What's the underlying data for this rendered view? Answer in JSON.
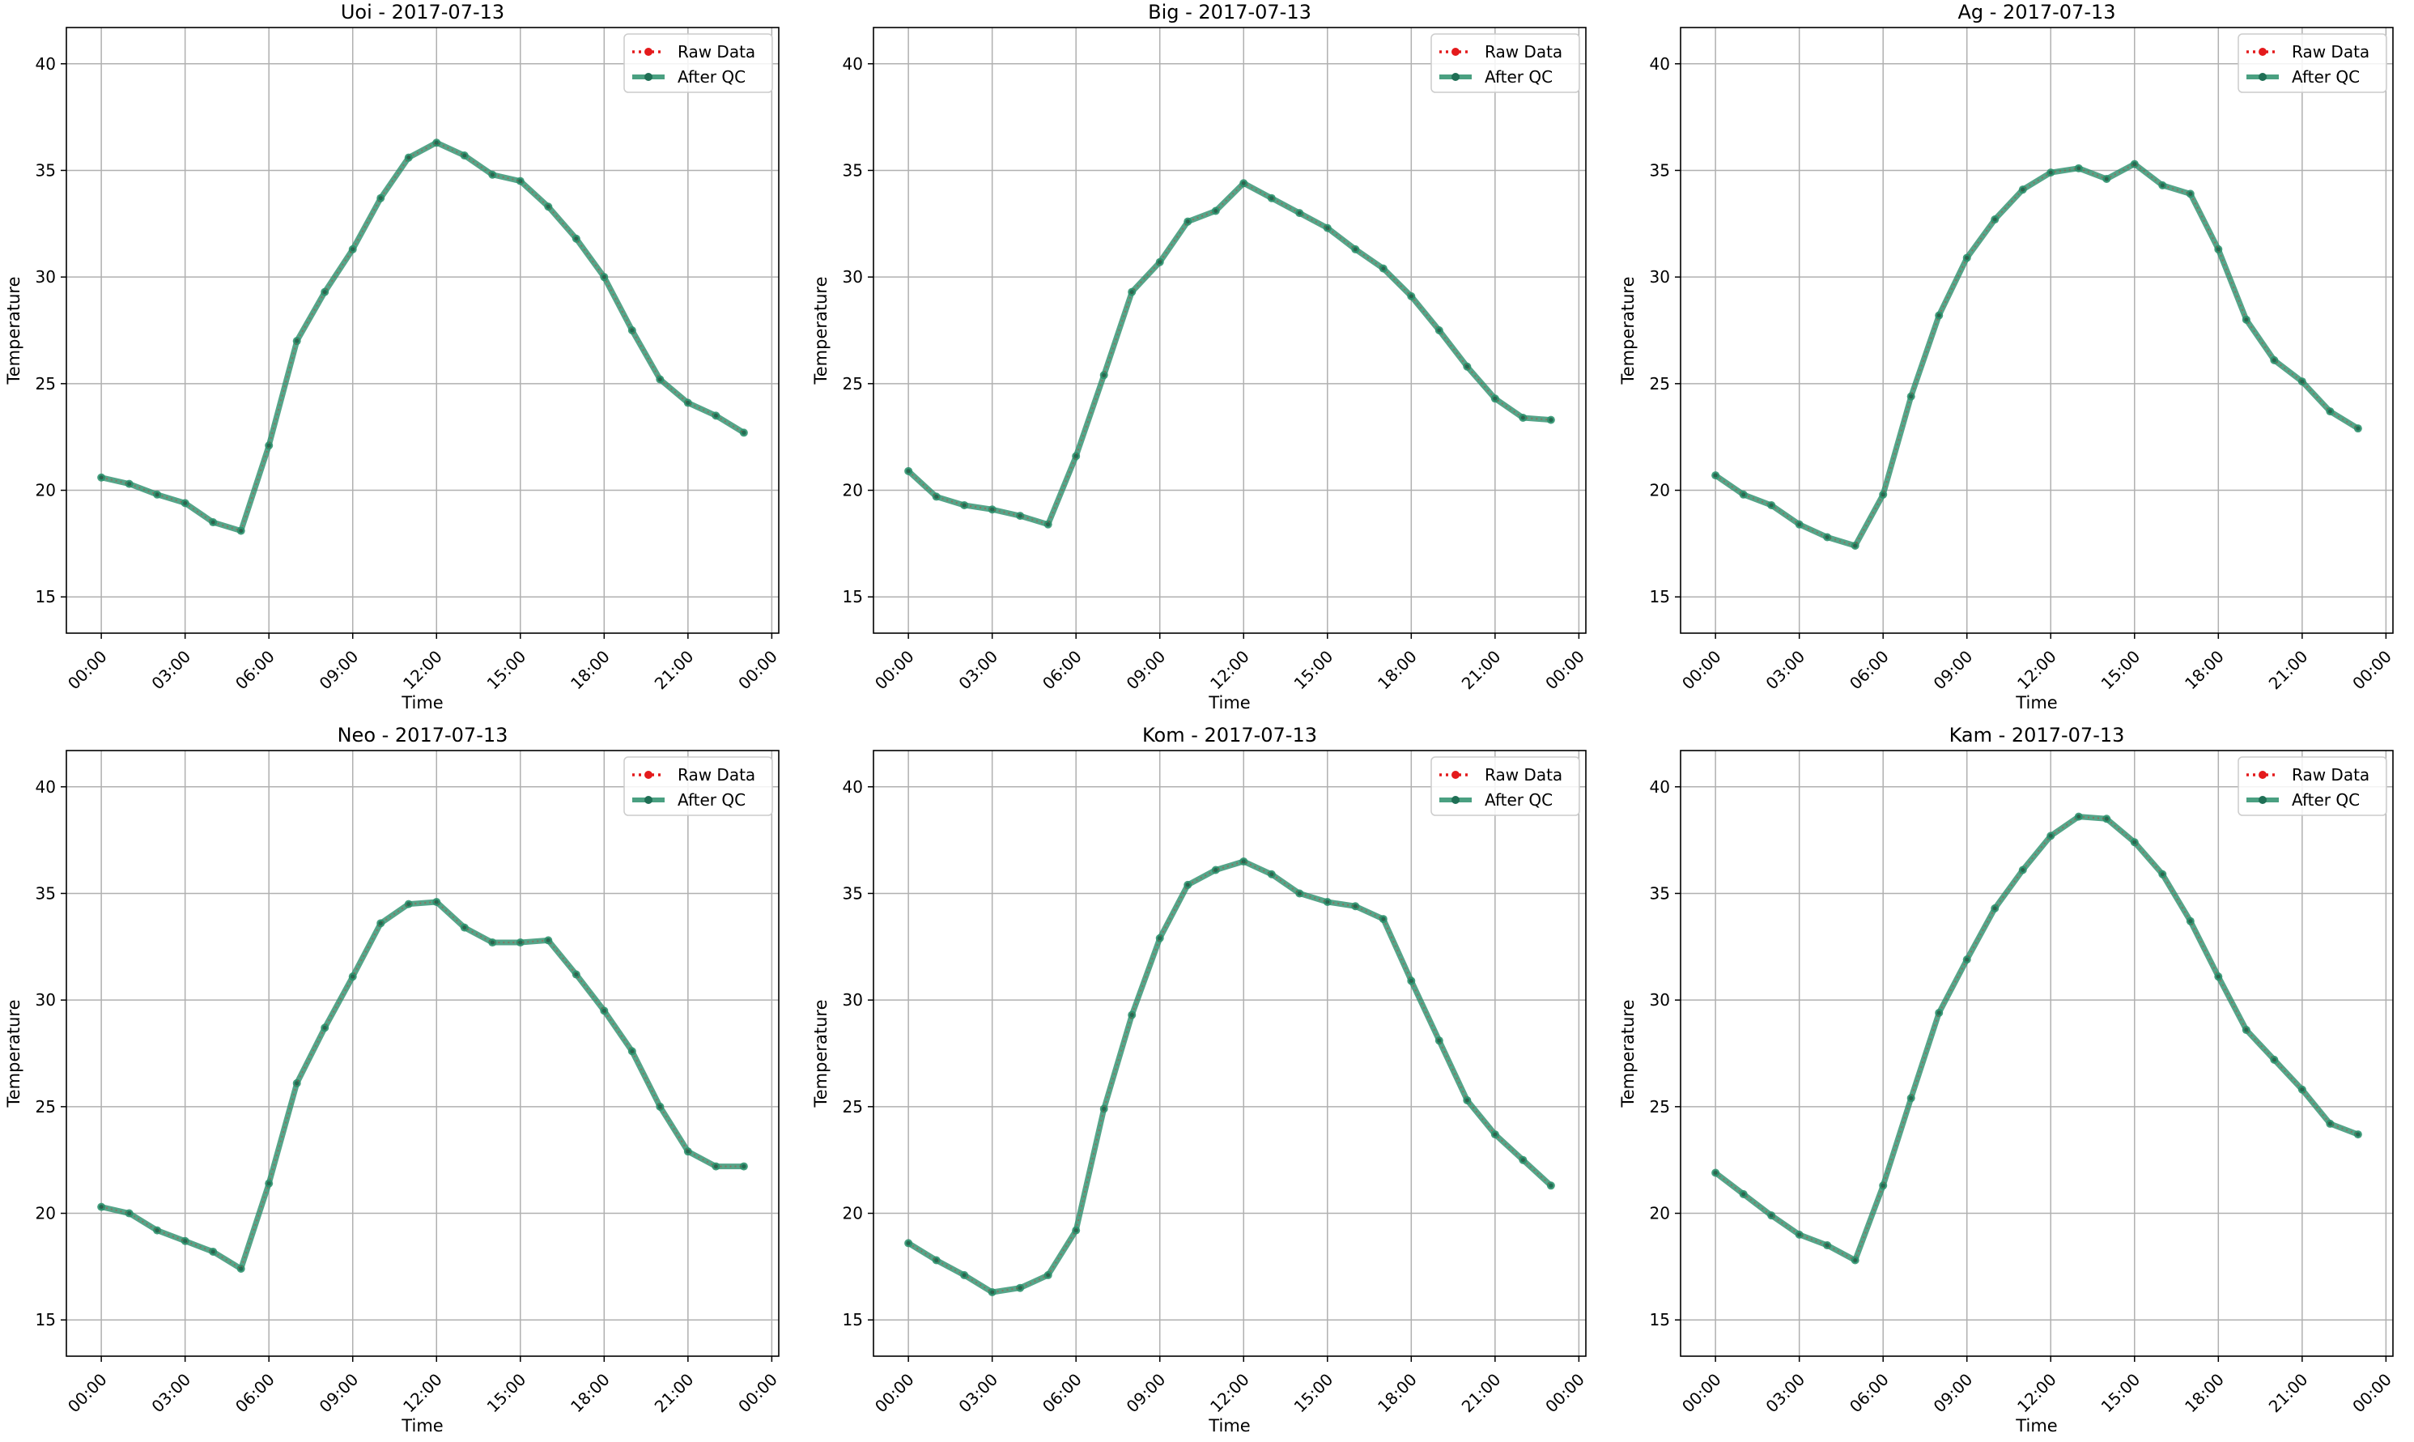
{
  "colors": {
    "raw": "#e41a1c",
    "qc": "#2a8f6b",
    "grid": "#b0b0b0",
    "axis": "#000000"
  },
  "chart_data": [
    {
      "type": "line",
      "title": "Uoi - 2017-07-13",
      "xlabel": "Time",
      "ylabel": "Temperature",
      "x_ticks": [
        "00:00",
        "03:00",
        "06:00",
        "09:00",
        "12:00",
        "15:00",
        "18:00",
        "21:00",
        "00:00"
      ],
      "y_ticks": [
        15,
        20,
        25,
        30,
        35,
        40
      ],
      "xlim": [
        "2017-07-12 22:45",
        "2017-07-14 00:15"
      ],
      "ylim": [
        13.3,
        41.7
      ],
      "grid": true,
      "legend_position": "top-right",
      "legend": [
        "Raw Data",
        "After QC"
      ],
      "x": [
        "00:00",
        "01:00",
        "02:00",
        "03:00",
        "04:00",
        "05:00",
        "06:00",
        "07:00",
        "08:00",
        "09:00",
        "10:00",
        "11:00",
        "12:00",
        "13:00",
        "14:00",
        "15:00",
        "16:00",
        "17:00",
        "18:00",
        "19:00",
        "20:00",
        "21:00",
        "22:00",
        "23:00"
      ],
      "series": [
        {
          "name": "Raw Data",
          "values": [
            20.6,
            20.3,
            19.8,
            19.4,
            18.5,
            18.1,
            22.1,
            27.0,
            29.3,
            31.3,
            33.7,
            35.6,
            36.3,
            35.7,
            34.8,
            34.5,
            33.3,
            31.8,
            30.0,
            27.5,
            25.2,
            24.1,
            23.5,
            22.7
          ]
        },
        {
          "name": "After QC",
          "values": [
            20.6,
            20.3,
            19.8,
            19.4,
            18.5,
            18.1,
            22.1,
            27.0,
            29.3,
            31.3,
            33.7,
            35.6,
            36.3,
            35.7,
            34.8,
            34.5,
            33.3,
            31.8,
            30.0,
            27.5,
            25.2,
            24.1,
            23.5,
            22.7
          ]
        }
      ]
    },
    {
      "type": "line",
      "title": "Big - 2017-07-13",
      "xlabel": "Time",
      "ylabel": "Temperature",
      "x_ticks": [
        "00:00",
        "03:00",
        "06:00",
        "09:00",
        "12:00",
        "15:00",
        "18:00",
        "21:00",
        "00:00"
      ],
      "y_ticks": [
        15,
        20,
        25,
        30,
        35,
        40
      ],
      "xlim": [
        "2017-07-12 22:45",
        "2017-07-14 00:15"
      ],
      "ylim": [
        13.3,
        41.7
      ],
      "grid": true,
      "legend_position": "top-right",
      "legend": [
        "Raw Data",
        "After QC"
      ],
      "x": [
        "00:00",
        "01:00",
        "02:00",
        "03:00",
        "04:00",
        "05:00",
        "06:00",
        "07:00",
        "08:00",
        "09:00",
        "10:00",
        "11:00",
        "12:00",
        "13:00",
        "14:00",
        "15:00",
        "16:00",
        "17:00",
        "18:00",
        "19:00",
        "20:00",
        "21:00",
        "22:00",
        "23:00"
      ],
      "series": [
        {
          "name": "Raw Data",
          "values": [
            20.9,
            19.7,
            19.3,
            19.1,
            18.8,
            18.4,
            21.6,
            25.4,
            29.3,
            30.7,
            32.6,
            33.1,
            34.4,
            33.7,
            33.0,
            32.3,
            31.3,
            30.4,
            29.1,
            27.5,
            25.8,
            24.3,
            23.4,
            23.3
          ]
        },
        {
          "name": "After QC",
          "values": [
            20.9,
            19.7,
            19.3,
            19.1,
            18.8,
            18.4,
            21.6,
            25.4,
            29.3,
            30.7,
            32.6,
            33.1,
            34.4,
            33.7,
            33.0,
            32.3,
            31.3,
            30.4,
            29.1,
            27.5,
            25.8,
            24.3,
            23.4,
            23.3
          ]
        }
      ]
    },
    {
      "type": "line",
      "title": "Ag - 2017-07-13",
      "xlabel": "Time",
      "ylabel": "Temperature",
      "x_ticks": [
        "00:00",
        "03:00",
        "06:00",
        "09:00",
        "12:00",
        "15:00",
        "18:00",
        "21:00",
        "00:00"
      ],
      "y_ticks": [
        15,
        20,
        25,
        30,
        35,
        40
      ],
      "xlim": [
        "2017-07-12 22:45",
        "2017-07-14 00:15"
      ],
      "ylim": [
        13.3,
        41.7
      ],
      "grid": true,
      "legend_position": "top-right",
      "legend": [
        "Raw Data",
        "After QC"
      ],
      "x": [
        "00:00",
        "01:00",
        "02:00",
        "03:00",
        "04:00",
        "05:00",
        "06:00",
        "07:00",
        "08:00",
        "09:00",
        "10:00",
        "11:00",
        "12:00",
        "13:00",
        "14:00",
        "15:00",
        "16:00",
        "17:00",
        "18:00",
        "19:00",
        "20:00",
        "21:00",
        "22:00",
        "23:00"
      ],
      "series": [
        {
          "name": "Raw Data",
          "values": [
            20.7,
            19.8,
            19.3,
            18.4,
            17.8,
            17.4,
            19.8,
            24.4,
            28.2,
            30.9,
            32.7,
            34.1,
            34.9,
            35.1,
            34.6,
            35.3,
            34.3,
            33.9,
            31.3,
            28.0,
            26.1,
            25.1,
            23.7,
            22.9
          ]
        },
        {
          "name": "After QC",
          "values": [
            20.7,
            19.8,
            19.3,
            18.4,
            17.8,
            17.4,
            19.8,
            24.4,
            28.2,
            30.9,
            32.7,
            34.1,
            34.9,
            35.1,
            34.6,
            35.3,
            34.3,
            33.9,
            31.3,
            28.0,
            26.1,
            25.1,
            23.7,
            22.9
          ]
        }
      ]
    },
    {
      "type": "line",
      "title": "Neo - 2017-07-13",
      "xlabel": "Time",
      "ylabel": "Temperature",
      "x_ticks": [
        "00:00",
        "03:00",
        "06:00",
        "09:00",
        "12:00",
        "15:00",
        "18:00",
        "21:00",
        "00:00"
      ],
      "y_ticks": [
        15,
        20,
        25,
        30,
        35,
        40
      ],
      "xlim": [
        "2017-07-12 22:45",
        "2017-07-14 00:15"
      ],
      "ylim": [
        13.3,
        41.7
      ],
      "grid": true,
      "legend_position": "top-right",
      "legend": [
        "Raw Data",
        "After QC"
      ],
      "x": [
        "00:00",
        "01:00",
        "02:00",
        "03:00",
        "04:00",
        "05:00",
        "06:00",
        "07:00",
        "08:00",
        "09:00",
        "10:00",
        "11:00",
        "12:00",
        "13:00",
        "14:00",
        "15:00",
        "16:00",
        "17:00",
        "18:00",
        "19:00",
        "20:00",
        "21:00",
        "22:00",
        "23:00"
      ],
      "series": [
        {
          "name": "Raw Data",
          "values": [
            20.3,
            20.0,
            19.2,
            18.7,
            18.2,
            17.4,
            21.4,
            26.1,
            28.7,
            31.1,
            33.6,
            34.5,
            34.6,
            33.4,
            32.7,
            32.7,
            32.8,
            31.2,
            29.5,
            27.6,
            25.0,
            22.9,
            22.2,
            22.2
          ]
        },
        {
          "name": "After QC",
          "values": [
            20.3,
            20.0,
            19.2,
            18.7,
            18.2,
            17.4,
            21.4,
            26.1,
            28.7,
            31.1,
            33.6,
            34.5,
            34.6,
            33.4,
            32.7,
            32.7,
            32.8,
            31.2,
            29.5,
            27.6,
            25.0,
            22.9,
            22.2,
            22.2
          ]
        }
      ]
    },
    {
      "type": "line",
      "title": "Kom - 2017-07-13",
      "xlabel": "Time",
      "ylabel": "Temperature",
      "x_ticks": [
        "00:00",
        "03:00",
        "06:00",
        "09:00",
        "12:00",
        "15:00",
        "18:00",
        "21:00",
        "00:00"
      ],
      "y_ticks": [
        15,
        20,
        25,
        30,
        35,
        40
      ],
      "xlim": [
        "2017-07-12 22:45",
        "2017-07-14 00:15"
      ],
      "ylim": [
        13.3,
        41.7
      ],
      "grid": true,
      "legend_position": "top-right",
      "legend": [
        "Raw Data",
        "After QC"
      ],
      "x": [
        "00:00",
        "01:00",
        "02:00",
        "03:00",
        "04:00",
        "05:00",
        "06:00",
        "07:00",
        "08:00",
        "09:00",
        "10:00",
        "11:00",
        "12:00",
        "13:00",
        "14:00",
        "15:00",
        "16:00",
        "17:00",
        "18:00",
        "19:00",
        "20:00",
        "21:00",
        "22:00",
        "23:00"
      ],
      "series": [
        {
          "name": "Raw Data",
          "values": [
            18.6,
            17.8,
            17.1,
            16.3,
            16.5,
            17.1,
            19.2,
            24.9,
            29.3,
            32.9,
            35.4,
            36.1,
            36.5,
            35.9,
            35.0,
            34.6,
            34.4,
            33.8,
            30.9,
            28.1,
            25.3,
            23.7,
            22.5,
            21.3
          ]
        },
        {
          "name": "After QC",
          "values": [
            18.6,
            17.8,
            17.1,
            16.3,
            16.5,
            17.1,
            19.2,
            24.9,
            29.3,
            32.9,
            35.4,
            36.1,
            36.5,
            35.9,
            35.0,
            34.6,
            34.4,
            33.8,
            30.9,
            28.1,
            25.3,
            23.7,
            22.5,
            21.3
          ]
        }
      ]
    },
    {
      "type": "line",
      "title": "Kam - 2017-07-13",
      "xlabel": "Time",
      "ylabel": "Temperature",
      "x_ticks": [
        "00:00",
        "03:00",
        "06:00",
        "09:00",
        "12:00",
        "15:00",
        "18:00",
        "21:00",
        "00:00"
      ],
      "y_ticks": [
        15,
        20,
        25,
        30,
        35,
        40
      ],
      "xlim": [
        "2017-07-12 22:45",
        "2017-07-14 00:15"
      ],
      "ylim": [
        13.3,
        41.7
      ],
      "grid": true,
      "legend_position": "top-right",
      "legend": [
        "Raw Data",
        "After QC"
      ],
      "x": [
        "00:00",
        "01:00",
        "02:00",
        "03:00",
        "04:00",
        "05:00",
        "06:00",
        "07:00",
        "08:00",
        "09:00",
        "10:00",
        "11:00",
        "12:00",
        "13:00",
        "14:00",
        "15:00",
        "16:00",
        "17:00",
        "18:00",
        "19:00",
        "20:00",
        "21:00",
        "22:00",
        "23:00"
      ],
      "series": [
        {
          "name": "Raw Data",
          "values": [
            21.9,
            20.9,
            19.9,
            19.0,
            18.5,
            17.8,
            21.3,
            25.4,
            29.4,
            31.9,
            34.3,
            36.1,
            37.7,
            38.6,
            38.5,
            37.4,
            35.9,
            33.7,
            31.1,
            28.6,
            27.2,
            25.8,
            24.2,
            23.7
          ]
        },
        {
          "name": "After QC",
          "values": [
            21.9,
            20.9,
            19.9,
            19.0,
            18.5,
            17.8,
            21.3,
            25.4,
            29.4,
            31.9,
            34.3,
            36.1,
            37.7,
            38.6,
            38.5,
            37.4,
            35.9,
            33.7,
            31.1,
            28.6,
            27.2,
            25.8,
            24.2,
            23.7
          ]
        }
      ]
    }
  ]
}
